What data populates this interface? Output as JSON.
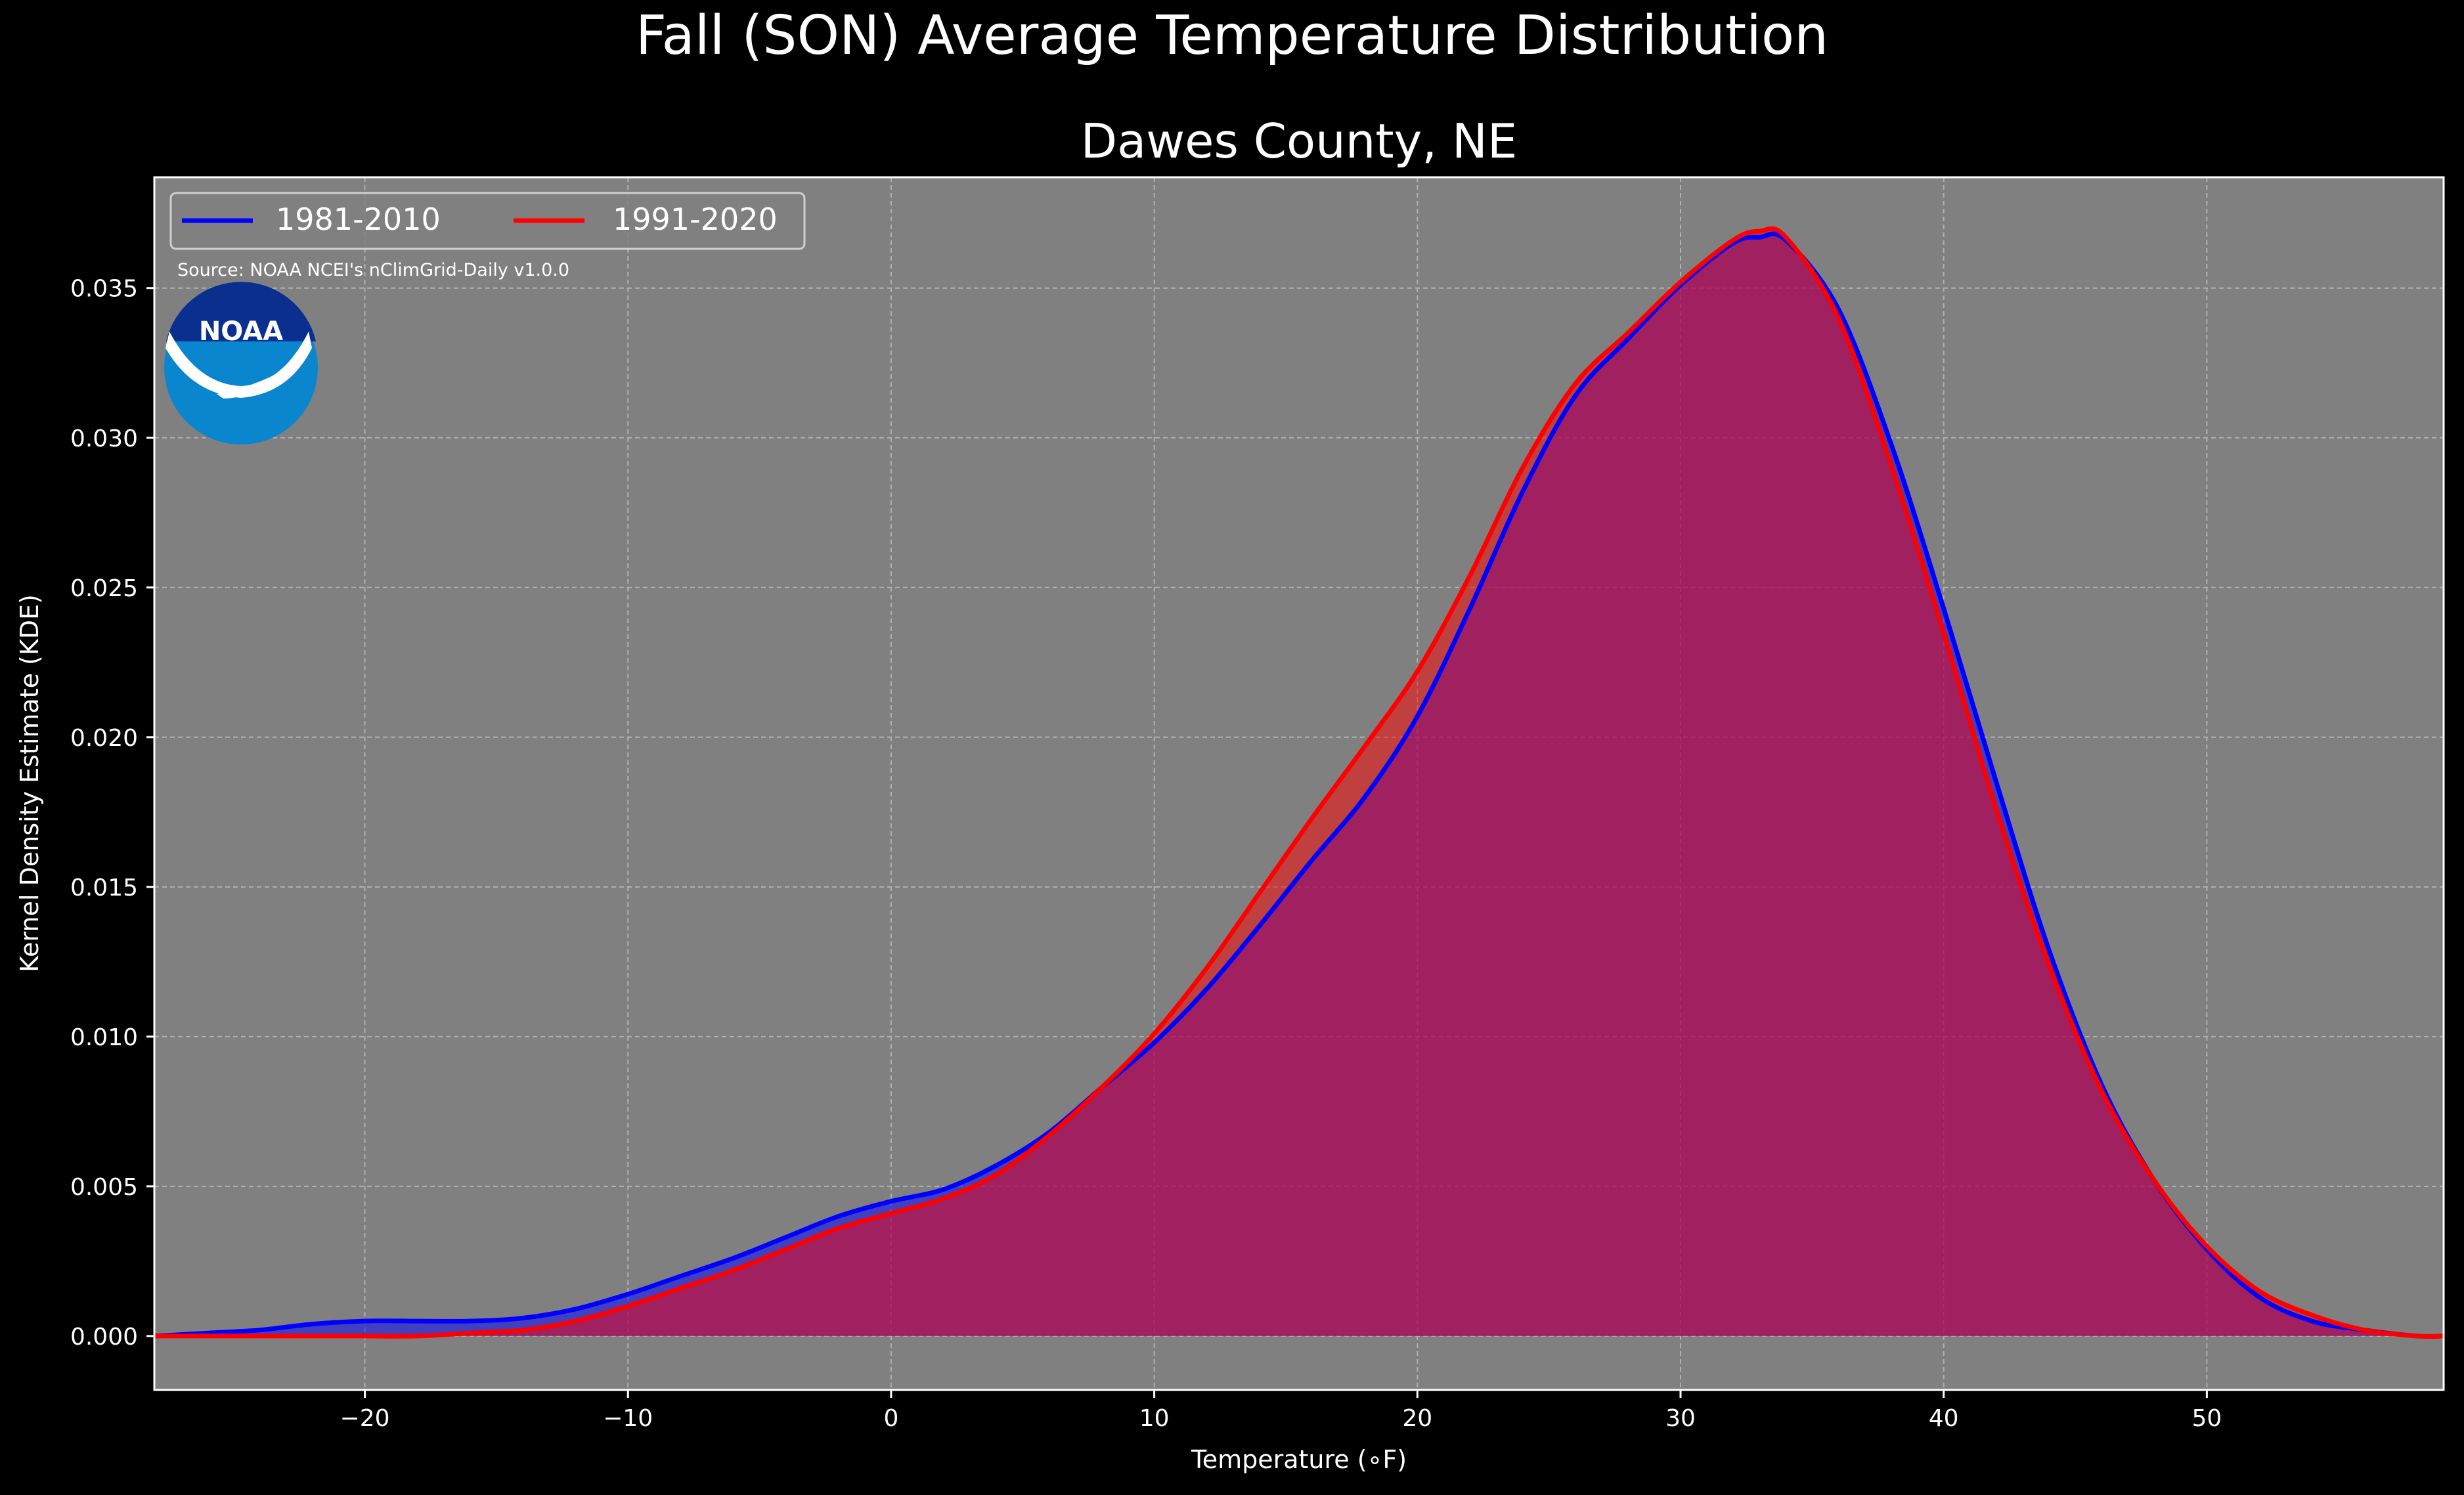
{
  "chart_data": {
    "type": "area",
    "title": "Fall (SON) Average Temperature Distribution",
    "subtitle": "Dawes County, NE",
    "xlabel": "Temperature (∘F)",
    "ylabel": "Kernel Density Estimate (KDE)",
    "xlim": [
      -28,
      59
    ],
    "ylim": [
      -0.0018,
      0.0387
    ],
    "xticks": [
      -20,
      -10,
      0,
      10,
      20,
      30,
      40,
      50
    ],
    "xtick_labels": [
      "−20",
      "−10",
      "0",
      "10",
      "20",
      "30",
      "40",
      "50"
    ],
    "yticks": [
      0.0,
      0.005,
      0.01,
      0.015,
      0.02,
      0.025,
      0.03,
      0.035
    ],
    "ytick_labels": [
      "0.000",
      "0.005",
      "0.010",
      "0.015",
      "0.020",
      "0.025",
      "0.030",
      "0.035"
    ],
    "grid": true,
    "legend_position": "top-left",
    "annotation": "Source: NOAA NCEI's nClimGrid-Daily v1.0.0",
    "logo_text": "NOAA",
    "series": [
      {
        "name": "1981-2010",
        "color": "#0000ff",
        "x": [
          -28,
          -26,
          -24,
          -22,
          -20,
          -18,
          -16,
          -14,
          -12,
          -10,
          -8,
          -6,
          -4,
          -2,
          0,
          2,
          4,
          6,
          8,
          10,
          12,
          14,
          16,
          18,
          20,
          22,
          24,
          26,
          28,
          30,
          32,
          33,
          34,
          36,
          38,
          40,
          42,
          44,
          46,
          48,
          50,
          52,
          54,
          56,
          58,
          59
        ],
        "y": [
          0.0,
          0.0001,
          0.0002,
          0.0004,
          0.0005,
          0.0005,
          0.0005,
          0.0006,
          0.0009,
          0.0014,
          0.002,
          0.0026,
          0.0033,
          0.004,
          0.0045,
          0.0049,
          0.0057,
          0.0068,
          0.0083,
          0.0098,
          0.0116,
          0.0137,
          0.0159,
          0.018,
          0.0207,
          0.0243,
          0.0282,
          0.0314,
          0.0333,
          0.0351,
          0.0365,
          0.0367,
          0.0366,
          0.0343,
          0.0298,
          0.0243,
          0.0185,
          0.0129,
          0.0084,
          0.0052,
          0.0029,
          0.0013,
          0.0005,
          0.0002,
          0.0,
          0.0
        ]
      },
      {
        "name": "1991-2020",
        "color": "#ff0000",
        "x": [
          -28,
          -26,
          -24,
          -22,
          -20,
          -18,
          -16,
          -14,
          -12,
          -10,
          -8,
          -6,
          -4,
          -2,
          0,
          2,
          4,
          6,
          8,
          10,
          12,
          14,
          16,
          18,
          20,
          22,
          24,
          26,
          28,
          30,
          32,
          33,
          34,
          36,
          38,
          40,
          42,
          44,
          46,
          48,
          50,
          52,
          54,
          56,
          58,
          59
        ],
        "y": [
          0.0,
          0.0,
          0.0,
          0.0,
          0.0,
          0.0,
          0.0001,
          0.0002,
          0.0005,
          0.001,
          0.0016,
          0.0022,
          0.0029,
          0.0036,
          0.0041,
          0.0046,
          0.0054,
          0.0067,
          0.0083,
          0.0101,
          0.0123,
          0.0148,
          0.0173,
          0.0197,
          0.0222,
          0.0254,
          0.029,
          0.0318,
          0.0335,
          0.0352,
          0.0366,
          0.0369,
          0.0367,
          0.034,
          0.0291,
          0.0235,
          0.0176,
          0.0124,
          0.0082,
          0.0052,
          0.003,
          0.0015,
          0.0007,
          0.0002,
          0.0,
          0.0
        ]
      }
    ]
  }
}
